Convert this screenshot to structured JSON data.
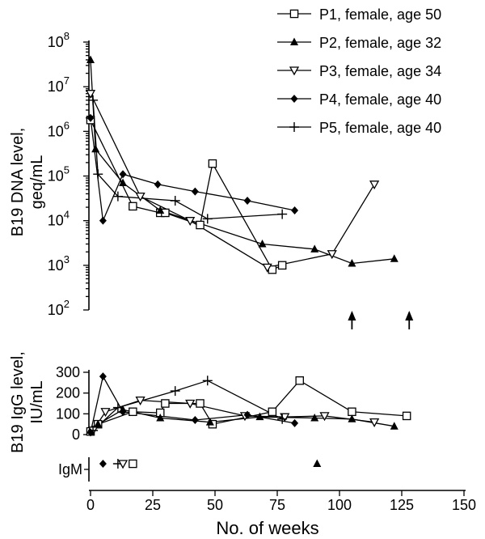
{
  "chart_data": {
    "type": "line",
    "xlabel": "No. of weeks",
    "xlim": [
      0,
      150
    ],
    "x_ticks": [
      "0",
      "25",
      "50",
      "75",
      "100",
      "125",
      "150"
    ],
    "legend_position": "top-right",
    "legend": [
      {
        "id": "P1",
        "label": "P1, female, age 50",
        "marker": "square-open"
      },
      {
        "id": "P2",
        "label": "P2, female, age 32",
        "marker": "triangle-up-filled"
      },
      {
        "id": "P3",
        "label": "P3, female, age 34",
        "marker": "triangle-down-open"
      },
      {
        "id": "P4",
        "label": "P4, female, age 40",
        "marker": "diamond-filled"
      },
      {
        "id": "P5",
        "label": "P5, female, age 40",
        "marker": "plus"
      }
    ],
    "panels": [
      {
        "id": "dna",
        "ylabel": [
          "B19 DNA level,",
          "geq/mL"
        ],
        "yscale": "log",
        "ylim": [
          100,
          100000000
        ],
        "y_ticks": [
          {
            "base": "10",
            "exp": "2",
            "value": 100
          },
          {
            "base": "10",
            "exp": "3",
            "value": 1000
          },
          {
            "base": "10",
            "exp": "4",
            "value": 10000
          },
          {
            "base": "10",
            "exp": "5",
            "value": 100000
          },
          {
            "base": "10",
            "exp": "6",
            "value": 1000000
          },
          {
            "base": "10",
            "exp": "7",
            "value": 10000000
          },
          {
            "base": "10",
            "exp": "8",
            "value": 100000000
          }
        ],
        "series": [
          {
            "id": "P1",
            "points": [
              [
                0,
                1800000
              ],
              [
                17,
                21000
              ],
              [
                28,
                15000
              ],
              [
                30,
                15000
              ],
              [
                44,
                8000
              ],
              [
                49,
                190000
              ],
              [
                73,
                800
              ],
              [
                77,
                1000
              ]
            ]
          },
          {
            "id": "P2",
            "points": [
              [
                0,
                40000000
              ],
              [
                2,
                400000
              ],
              [
                13,
                70000
              ],
              [
                28,
                17000
              ],
              [
                69,
                3000
              ],
              [
                90,
                2300
              ],
              [
                105,
                1100
              ],
              [
                122,
                1400
              ]
            ]
          },
          {
            "id": "P3",
            "points": [
              [
                0,
                7000000
              ],
              [
                20,
                35000
              ],
              [
                40,
                10000
              ],
              [
                71,
                900
              ],
              [
                97,
                1800
              ],
              [
                114,
                65000
              ]
            ]
          },
          {
            "id": "P4",
            "points": [
              [
                0,
                2000000
              ],
              [
                5,
                10000
              ],
              [
                13,
                110000
              ],
              [
                27,
                65000
              ],
              [
                42,
                45000
              ],
              [
                63,
                28000
              ],
              [
                82,
                17000
              ]
            ]
          },
          {
            "id": "P5",
            "points": [
              [
                1,
                5000000
              ],
              [
                3,
                110000
              ],
              [
                11,
                35000
              ],
              [
                34,
                28000
              ],
              [
                47,
                11000
              ],
              [
                77,
                14000
              ]
            ]
          }
        ],
        "below_detection_arrows": [
          105,
          128
        ]
      },
      {
        "id": "igg",
        "ylabel": [
          "B19 IgG level,",
          "IU/mL"
        ],
        "yscale": "linear",
        "ylim": [
          0,
          300
        ],
        "y_ticks": [
          "0",
          "100",
          "200",
          "300"
        ],
        "series": [
          {
            "id": "P1",
            "points": [
              [
                0,
                15
              ],
              [
                3,
                50
              ],
              [
                17,
                110
              ],
              [
                28,
                105
              ],
              [
                30,
                150
              ],
              [
                44,
                150
              ],
              [
                49,
                50
              ],
              [
                73,
                110
              ],
              [
                84,
                260
              ],
              [
                105,
                110
              ],
              [
                127,
                90
              ]
            ]
          },
          {
            "id": "P2",
            "points": [
              [
                0,
                20
              ],
              [
                3,
                50
              ],
              [
                13,
                120
              ],
              [
                28,
                80
              ],
              [
                48,
                60
              ],
              [
                68,
                85
              ],
              [
                90,
                80
              ],
              [
                105,
                75
              ],
              [
                122,
                40
              ]
            ]
          },
          {
            "id": "P3",
            "points": [
              [
                1,
                20
              ],
              [
                6,
                110
              ],
              [
                20,
                165
              ],
              [
                40,
                150
              ],
              [
                62,
                90
              ],
              [
                78,
                85
              ],
              [
                94,
                90
              ],
              [
                114,
                60
              ]
            ]
          },
          {
            "id": "P4",
            "points": [
              [
                0,
                10
              ],
              [
                5,
                280
              ],
              [
                13,
                110
              ],
              [
                42,
                70
              ],
              [
                63,
                95
              ],
              [
                82,
                55
              ]
            ]
          },
          {
            "id": "P5",
            "points": [
              [
                1,
                20
              ],
              [
                11,
                130
              ],
              [
                34,
                210
              ],
              [
                47,
                260
              ],
              [
                77,
                75
              ]
            ]
          }
        ]
      },
      {
        "id": "igm",
        "ylabel": [
          "IgM"
        ],
        "points": [
          {
            "id": "P4",
            "x": 5
          },
          {
            "id": "P5",
            "x": 11
          },
          {
            "id": "P3",
            "x": 13
          },
          {
            "id": "P1",
            "x": 17
          },
          {
            "id": "P2",
            "x": 91
          }
        ]
      }
    ]
  }
}
